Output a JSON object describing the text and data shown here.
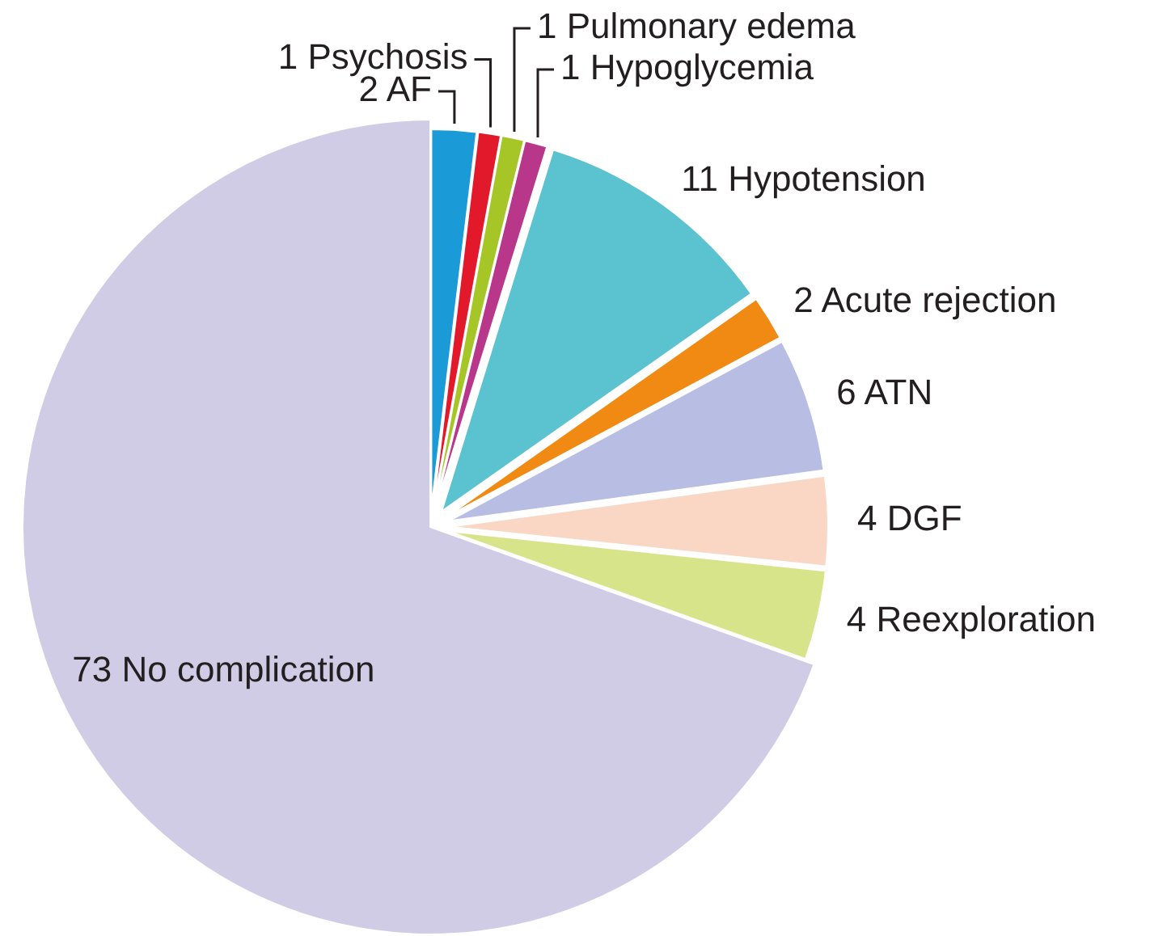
{
  "chart_data": {
    "type": "pie",
    "categories": [
      "2 AF",
      "1 Psychosis",
      "1 Pulmonary edema",
      "1 Hypoglycemia",
      "11 Hypotension",
      "2 Acute rejection",
      "6 ATN",
      "4 DGF",
      "4 Reexploration",
      "73 No complication"
    ],
    "values": [
      2,
      1,
      1,
      1,
      11,
      2,
      6,
      4,
      4,
      73
    ],
    "colors": [
      "#1a9ad6",
      "#e2182b",
      "#a5c626",
      "#b8378a",
      "#5bc2cf",
      "#f08a12",
      "#b7bde3",
      "#f9d7c4",
      "#d8e48a",
      "#d0cce5"
    ]
  }
}
